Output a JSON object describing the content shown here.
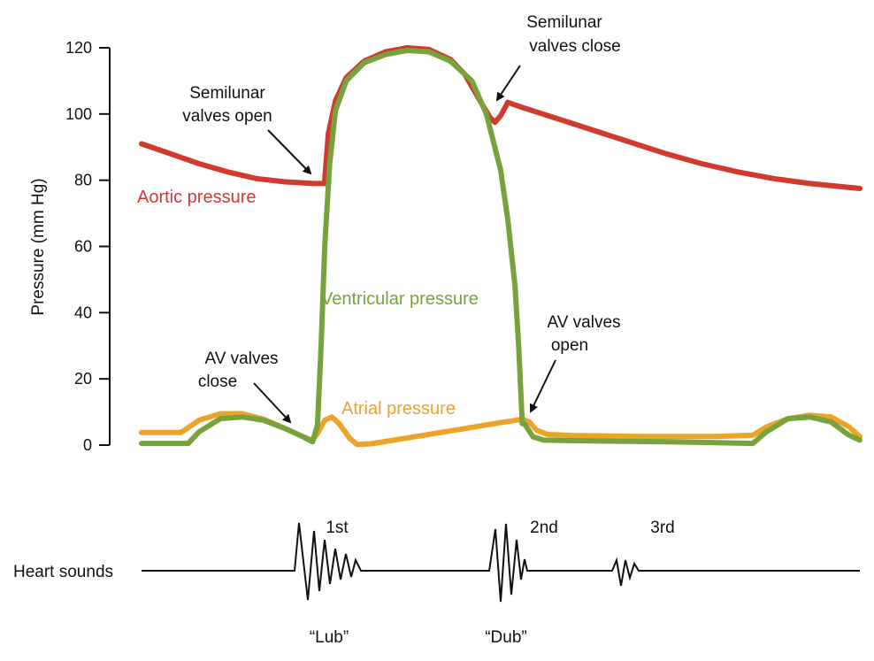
{
  "chart_data": {
    "type": "line",
    "ylabel": "Pressure (mm Hg)",
    "ylim": [
      0,
      120
    ],
    "y_ticks": [
      "0",
      "20",
      "40",
      "60",
      "80",
      "100",
      "120"
    ],
    "grid": false,
    "series": [
      {
        "name": "Aortic pressure",
        "color": "#d13a2f",
        "values": [
          [
            0,
            91
          ],
          [
            0.04,
            88
          ],
          [
            0.08,
            85
          ],
          [
            0.12,
            82.5
          ],
          [
            0.16,
            80.5
          ],
          [
            0.2,
            79.5
          ],
          [
            0.24,
            79
          ],
          [
            0.255,
            79
          ],
          [
            0.255,
            80
          ],
          [
            0.26,
            94
          ],
          [
            0.27,
            104
          ],
          [
            0.285,
            111
          ],
          [
            0.31,
            116
          ],
          [
            0.34,
            118.8
          ],
          [
            0.37,
            120
          ],
          [
            0.4,
            119.5
          ],
          [
            0.43,
            116.5
          ],
          [
            0.45,
            112
          ],
          [
            0.47,
            104.5
          ],
          [
            0.485,
            99
          ],
          [
            0.492,
            97.5
          ],
          [
            0.5,
            99.5
          ],
          [
            0.51,
            103.5
          ],
          [
            0.53,
            102
          ],
          [
            0.58,
            98.5
          ],
          [
            0.63,
            95
          ],
          [
            0.68,
            91.5
          ],
          [
            0.73,
            88
          ],
          [
            0.78,
            85
          ],
          [
            0.83,
            82.5
          ],
          [
            0.88,
            80.5
          ],
          [
            0.93,
            79
          ],
          [
            1.0,
            77.5
          ]
        ]
      },
      {
        "name": "Ventricular pressure",
        "color": "#78a23b",
        "values": [
          [
            0,
            0.5
          ],
          [
            0.065,
            0.5
          ],
          [
            0.08,
            4
          ],
          [
            0.11,
            8
          ],
          [
            0.14,
            8.5
          ],
          [
            0.17,
            7.5
          ],
          [
            0.2,
            5
          ],
          [
            0.225,
            2.5
          ],
          [
            0.238,
            1
          ],
          [
            0.245,
            6
          ],
          [
            0.25,
            30
          ],
          [
            0.255,
            60
          ],
          [
            0.262,
            85
          ],
          [
            0.27,
            101
          ],
          [
            0.285,
            110
          ],
          [
            0.31,
            115.5
          ],
          [
            0.34,
            118
          ],
          [
            0.37,
            119.2
          ],
          [
            0.4,
            118.8
          ],
          [
            0.43,
            116
          ],
          [
            0.46,
            110
          ],
          [
            0.48,
            100
          ],
          [
            0.5,
            83
          ],
          [
            0.51,
            68
          ],
          [
            0.52,
            48
          ],
          [
            0.525,
            30
          ],
          [
            0.53,
            6.5
          ],
          [
            0.533,
            6.5
          ],
          [
            0.545,
            2.5
          ],
          [
            0.56,
            1.5
          ],
          [
            0.65,
            1.2
          ],
          [
            0.76,
            0.9
          ],
          [
            0.851,
            0.5
          ],
          [
            0.87,
            4
          ],
          [
            0.9,
            8
          ],
          [
            0.93,
            8.5
          ],
          [
            0.96,
            7
          ],
          [
            0.985,
            3
          ],
          [
            1.0,
            1.5
          ]
        ]
      },
      {
        "name": "Atrial pressure",
        "color": "#eba32a",
        "values": [
          [
            0,
            3.8
          ],
          [
            0.055,
            3.8
          ],
          [
            0.08,
            7.5
          ],
          [
            0.11,
            9.5
          ],
          [
            0.14,
            9.5
          ],
          [
            0.17,
            7.8
          ],
          [
            0.2,
            5
          ],
          [
            0.225,
            2.5
          ],
          [
            0.238,
            1.5
          ],
          [
            0.245,
            3.5
          ],
          [
            0.255,
            7.5
          ],
          [
            0.265,
            8.5
          ],
          [
            0.275,
            6.5
          ],
          [
            0.29,
            2
          ],
          [
            0.3,
            0.2
          ],
          [
            0.32,
            0.4
          ],
          [
            0.38,
            2.5
          ],
          [
            0.45,
            5
          ],
          [
            0.5,
            6.8
          ],
          [
            0.53,
            7.8
          ],
          [
            0.54,
            7
          ],
          [
            0.55,
            4.5
          ],
          [
            0.565,
            3.2
          ],
          [
            0.6,
            2.9
          ],
          [
            0.7,
            2.6
          ],
          [
            0.8,
            2.6
          ],
          [
            0.851,
            3
          ],
          [
            0.87,
            5.5
          ],
          [
            0.9,
            8
          ],
          [
            0.93,
            9
          ],
          [
            0.96,
            8.5
          ],
          [
            0.985,
            5.5
          ],
          [
            1.0,
            2.5
          ]
        ]
      }
    ],
    "annotations": {
      "semilunar_open": [
        "Semilunar",
        "valves open"
      ],
      "semilunar_close": [
        "Semilunar",
        "valves close"
      ],
      "av_close": [
        "AV valves",
        "close"
      ],
      "av_open": [
        "AV valves",
        "open"
      ]
    },
    "heart_sounds": {
      "label": "Heart sounds",
      "sounds": [
        {
          "label": "1st",
          "caption": "“Lub”"
        },
        {
          "label": "2nd",
          "caption": "“Dub”"
        },
        {
          "label": "3rd",
          "caption": ""
        }
      ]
    }
  }
}
